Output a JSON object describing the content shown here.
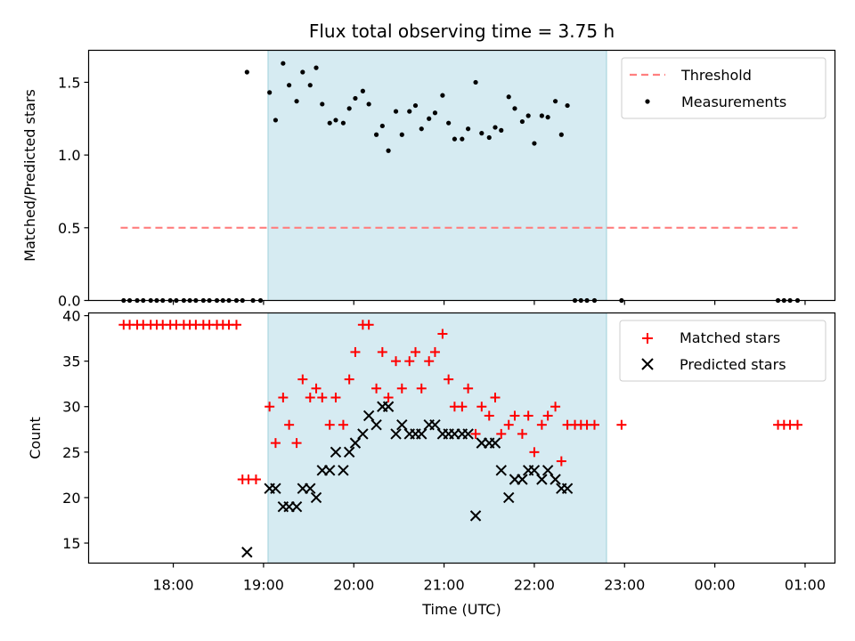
{
  "chart_data": [
    {
      "type": "scatter",
      "title": "Flux total observing time = 3.75 h",
      "xlabel": "",
      "ylabel": "Matched/Predicted stars",
      "ylim": [
        0,
        1.72
      ],
      "yticks": [
        "0.0",
        "0.5",
        "1.0",
        "1.5"
      ],
      "ytick_values": [
        0,
        0.5,
        1.0,
        1.5
      ],
      "observing_window": [
        "19:03",
        "22:48"
      ],
      "window_color": "#add8e6",
      "threshold": {
        "name": "Threshold",
        "value": 0.5,
        "x_range": [
          "17:25",
          "00:55"
        ],
        "color": "#ff7f7f"
      },
      "legend": {
        "position": "top-right",
        "entries": [
          "Threshold",
          "Measurements"
        ]
      },
      "series": [
        {
          "name": "Measurements",
          "color": "#000000",
          "points": [
            [
              "17:27",
              0
            ],
            [
              "17:31",
              0
            ],
            [
              "17:36",
              0
            ],
            [
              "17:40",
              0
            ],
            [
              "17:45",
              0
            ],
            [
              "17:49",
              0
            ],
            [
              "17:53",
              0
            ],
            [
              "17:58",
              0
            ],
            [
              "18:02",
              0
            ],
            [
              "18:07",
              0
            ],
            [
              "18:11",
              0
            ],
            [
              "18:15",
              0
            ],
            [
              "18:20",
              0
            ],
            [
              "18:24",
              0
            ],
            [
              "18:29",
              0
            ],
            [
              "18:33",
              0
            ],
            [
              "18:37",
              0
            ],
            [
              "18:42",
              0
            ],
            [
              "18:46",
              0
            ],
            [
              "18:49",
              1.57
            ],
            [
              "18:53",
              0
            ],
            [
              "18:58",
              0
            ],
            [
              "19:04",
              1.43
            ],
            [
              "19:08",
              1.24
            ],
            [
              "19:13",
              1.63
            ],
            [
              "19:17",
              1.48
            ],
            [
              "19:22",
              1.37
            ],
            [
              "19:26",
              1.57
            ],
            [
              "19:31",
              1.48
            ],
            [
              "19:35",
              1.6
            ],
            [
              "19:39",
              1.35
            ],
            [
              "19:44",
              1.22
            ],
            [
              "19:48",
              1.24
            ],
            [
              "19:53",
              1.22
            ],
            [
              "19:57",
              1.32
            ],
            [
              "20:01",
              1.39
            ],
            [
              "20:06",
              1.44
            ],
            [
              "20:10",
              1.35
            ],
            [
              "20:15",
              1.14
            ],
            [
              "20:19",
              1.2
            ],
            [
              "20:23",
              1.03
            ],
            [
              "20:28",
              1.3
            ],
            [
              "20:32",
              1.14
            ],
            [
              "20:37",
              1.3
            ],
            [
              "20:41",
              1.34
            ],
            [
              "20:45",
              1.18
            ],
            [
              "20:50",
              1.25
            ],
            [
              "20:54",
              1.29
            ],
            [
              "20:59",
              1.41
            ],
            [
              "21:03",
              1.22
            ],
            [
              "21:07",
              1.11
            ],
            [
              "21:12",
              1.11
            ],
            [
              "21:16",
              1.18
            ],
            [
              "21:21",
              1.5
            ],
            [
              "21:25",
              1.15
            ],
            [
              "21:30",
              1.12
            ],
            [
              "21:34",
              1.19
            ],
            [
              "21:38",
              1.17
            ],
            [
              "21:43",
              1.4
            ],
            [
              "21:47",
              1.32
            ],
            [
              "21:52",
              1.23
            ],
            [
              "21:56",
              1.27
            ],
            [
              "22:00",
              1.08
            ],
            [
              "22:05",
              1.27
            ],
            [
              "22:09",
              1.26
            ],
            [
              "22:14",
              1.37
            ],
            [
              "22:18",
              1.14
            ],
            [
              "22:22",
              1.34
            ],
            [
              "22:27",
              0
            ],
            [
              "22:31",
              0
            ],
            [
              "22:35",
              0
            ],
            [
              "22:40",
              0
            ],
            [
              "22:58",
              0
            ],
            [
              "00:42",
              0
            ],
            [
              "00:46",
              0
            ],
            [
              "00:50",
              0
            ],
            [
              "00:55",
              0
            ]
          ]
        }
      ]
    },
    {
      "type": "scatter",
      "title": "",
      "xlabel": "Time (UTC)",
      "ylabel": "Count",
      "ylim": [
        12.8,
        40.3
      ],
      "yticks": [
        "15",
        "20",
        "25",
        "30",
        "35",
        "40"
      ],
      "ytick_values": [
        15,
        20,
        25,
        30,
        35,
        40
      ],
      "xticks": [
        "18:00",
        "19:00",
        "20:00",
        "21:00",
        "22:00",
        "23:00",
        "00:00",
        "01:00"
      ],
      "xtick_hours": [
        18,
        19,
        20,
        21,
        22,
        23,
        24,
        25
      ],
      "xlim_hours": [
        17.062,
        25.331
      ],
      "observing_window": [
        "19:03",
        "22:48"
      ],
      "window_color": "#add8e6",
      "legend": {
        "position": "top-right",
        "entries": [
          "Matched stars",
          "Predicted stars"
        ]
      },
      "series": [
        {
          "name": "Matched stars",
          "marker": "plus",
          "color": "#ff0000",
          "points": [
            [
              "17:27",
              39
            ],
            [
              "17:31",
              39
            ],
            [
              "17:36",
              39
            ],
            [
              "17:40",
              39
            ],
            [
              "17:45",
              39
            ],
            [
              "17:49",
              39
            ],
            [
              "17:53",
              39
            ],
            [
              "17:58",
              39
            ],
            [
              "18:02",
              39
            ],
            [
              "18:07",
              39
            ],
            [
              "18:11",
              39
            ],
            [
              "18:15",
              39
            ],
            [
              "18:20",
              39
            ],
            [
              "18:24",
              39
            ],
            [
              "18:29",
              39
            ],
            [
              "18:33",
              39
            ],
            [
              "18:37",
              39
            ],
            [
              "18:42",
              39
            ],
            [
              "18:46",
              22
            ],
            [
              "18:50",
              22
            ],
            [
              "18:55",
              22
            ],
            [
              "19:04",
              30
            ],
            [
              "19:08",
              26
            ],
            [
              "19:13",
              31
            ],
            [
              "19:17",
              28
            ],
            [
              "19:22",
              26
            ],
            [
              "19:26",
              33
            ],
            [
              "19:31",
              31
            ],
            [
              "19:35",
              32
            ],
            [
              "19:39",
              31
            ],
            [
              "19:44",
              28
            ],
            [
              "19:48",
              31
            ],
            [
              "19:53",
              28
            ],
            [
              "19:57",
              33
            ],
            [
              "20:01",
              36
            ],
            [
              "20:06",
              39
            ],
            [
              "20:10",
              39
            ],
            [
              "20:15",
              32
            ],
            [
              "20:19",
              36
            ],
            [
              "20:23",
              31
            ],
            [
              "20:28",
              35
            ],
            [
              "20:32",
              32
            ],
            [
              "20:37",
              35
            ],
            [
              "20:41",
              36
            ],
            [
              "20:45",
              32
            ],
            [
              "20:50",
              35
            ],
            [
              "20:54",
              36
            ],
            [
              "20:59",
              38
            ],
            [
              "21:03",
              33
            ],
            [
              "21:07",
              30
            ],
            [
              "21:12",
              30
            ],
            [
              "21:16",
              32
            ],
            [
              "21:21",
              27
            ],
            [
              "21:25",
              30
            ],
            [
              "21:30",
              29
            ],
            [
              "21:34",
              31
            ],
            [
              "21:38",
              27
            ],
            [
              "21:43",
              28
            ],
            [
              "21:47",
              29
            ],
            [
              "21:52",
              27
            ],
            [
              "21:56",
              29
            ],
            [
              "22:00",
              25
            ],
            [
              "22:05",
              28
            ],
            [
              "22:09",
              29
            ],
            [
              "22:14",
              30
            ],
            [
              "22:18",
              24
            ],
            [
              "22:22",
              28
            ],
            [
              "22:27",
              28
            ],
            [
              "22:31",
              28
            ],
            [
              "22:35",
              28
            ],
            [
              "22:40",
              28
            ],
            [
              "22:58",
              28
            ],
            [
              "00:42",
              28
            ],
            [
              "00:46",
              28
            ],
            [
              "00:50",
              28
            ],
            [
              "00:55",
              28
            ]
          ]
        },
        {
          "name": "Predicted stars",
          "marker": "x",
          "color": "#000000",
          "points": [
            [
              "18:49",
              14
            ],
            [
              "19:04",
              21
            ],
            [
              "19:08",
              21
            ],
            [
              "19:13",
              19
            ],
            [
              "19:17",
              19
            ],
            [
              "19:22",
              19
            ],
            [
              "19:26",
              21
            ],
            [
              "19:31",
              21
            ],
            [
              "19:35",
              20
            ],
            [
              "19:39",
              23
            ],
            [
              "19:44",
              23
            ],
            [
              "19:48",
              25
            ],
            [
              "19:53",
              23
            ],
            [
              "19:57",
              25
            ],
            [
              "20:01",
              26
            ],
            [
              "20:06",
              27
            ],
            [
              "20:10",
              29
            ],
            [
              "20:15",
              28
            ],
            [
              "20:19",
              30
            ],
            [
              "20:23",
              30
            ],
            [
              "20:28",
              27
            ],
            [
              "20:32",
              28
            ],
            [
              "20:37",
              27
            ],
            [
              "20:41",
              27
            ],
            [
              "20:45",
              27
            ],
            [
              "20:50",
              28
            ],
            [
              "20:54",
              28
            ],
            [
              "20:59",
              27
            ],
            [
              "21:03",
              27
            ],
            [
              "21:07",
              27
            ],
            [
              "21:12",
              27
            ],
            [
              "21:16",
              27
            ],
            [
              "21:21",
              18
            ],
            [
              "21:25",
              26
            ],
            [
              "21:30",
              26
            ],
            [
              "21:34",
              26
            ],
            [
              "21:38",
              23
            ],
            [
              "21:43",
              20
            ],
            [
              "21:47",
              22
            ],
            [
              "21:52",
              22
            ],
            [
              "21:56",
              23
            ],
            [
              "22:00",
              23
            ],
            [
              "22:05",
              22
            ],
            [
              "22:09",
              23
            ],
            [
              "22:14",
              22
            ],
            [
              "22:18",
              21
            ],
            [
              "22:22",
              21
            ]
          ]
        }
      ]
    }
  ]
}
